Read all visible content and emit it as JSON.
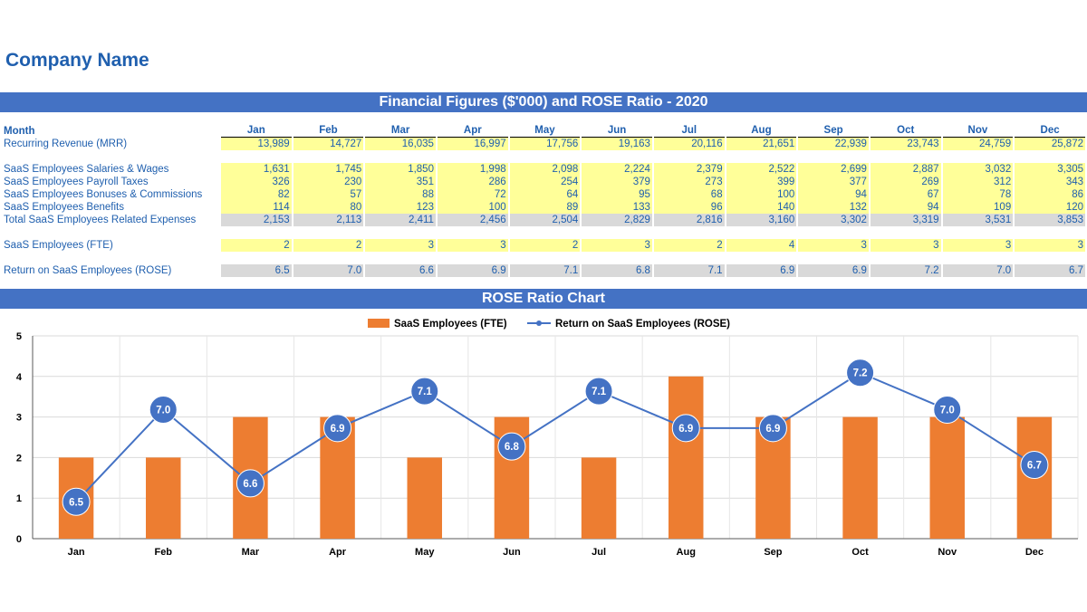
{
  "company_name": "Company Name",
  "financial_title": "Financial Figures ($'000) and ROSE Ratio - 2020",
  "chart_title": "ROSE Ratio Chart",
  "colors": {
    "banner": "#4472c4",
    "text_blue": "#1f5fae",
    "bar": "#ed7d31",
    "line": "#4472c4",
    "yellow_cell": "#ffff99",
    "grey_cell": "#d9d9d9"
  },
  "table": {
    "header_label": "Month",
    "months": [
      "Jan",
      "Feb",
      "Mar",
      "Apr",
      "May",
      "Jun",
      "Jul",
      "Aug",
      "Sep",
      "Oct",
      "Nov",
      "Dec"
    ],
    "rows": [
      {
        "label": "Recurring Revenue (MRR)",
        "style": "yellow",
        "values": [
          "13,989",
          "14,727",
          "16,035",
          "16,997",
          "17,756",
          "19,163",
          "20,116",
          "21,651",
          "22,939",
          "23,743",
          "24,759",
          "25,872"
        ]
      },
      {
        "label": "",
        "style": "spacer",
        "values": []
      },
      {
        "label": "SaaS Employees Salaries & Wages",
        "style": "yellow",
        "values": [
          "1,631",
          "1,745",
          "1,850",
          "1,998",
          "2,098",
          "2,224",
          "2,379",
          "2,522",
          "2,699",
          "2,887",
          "3,032",
          "3,305"
        ]
      },
      {
        "label": "SaaS Employees Payroll Taxes",
        "style": "yellow",
        "values": [
          "326",
          "230",
          "351",
          "286",
          "254",
          "379",
          "273",
          "399",
          "377",
          "269",
          "312",
          "343"
        ]
      },
      {
        "label": "SaaS Employees Bonuses & Commissions",
        "style": "yellow",
        "values": [
          "82",
          "57",
          "88",
          "72",
          "64",
          "95",
          "68",
          "100",
          "94",
          "67",
          "78",
          "86"
        ]
      },
      {
        "label": "SaaS Employees Benefits",
        "style": "yellow",
        "values": [
          "114",
          "80",
          "123",
          "100",
          "89",
          "133",
          "96",
          "140",
          "132",
          "94",
          "109",
          "120"
        ]
      },
      {
        "label": "Total SaaS Employees Related Expenses",
        "style": "grey",
        "values": [
          "2,153",
          "2,113",
          "2,411",
          "2,456",
          "2,504",
          "2,829",
          "2,816",
          "3,160",
          "3,302",
          "3,319",
          "3,531",
          "3,853"
        ]
      },
      {
        "label": "",
        "style": "spacer",
        "values": []
      },
      {
        "label": "SaaS Employees (FTE)",
        "style": "yellow",
        "values": [
          "2",
          "2",
          "3",
          "3",
          "2",
          "3",
          "2",
          "4",
          "3",
          "3",
          "3",
          "3"
        ]
      },
      {
        "label": "",
        "style": "spacer",
        "values": []
      },
      {
        "label": "Return on SaaS Employees (ROSE)",
        "style": "grey",
        "values": [
          "6.5",
          "7.0",
          "6.6",
          "6.9",
          "7.1",
          "6.8",
          "7.1",
          "6.9",
          "6.9",
          "7.2",
          "7.0",
          "6.7"
        ]
      }
    ]
  },
  "chart_data": {
    "type": "bar",
    "title": "ROSE Ratio Chart",
    "categories": [
      "Jan",
      "Feb",
      "Mar",
      "Apr",
      "May",
      "Jun",
      "Jul",
      "Aug",
      "Sep",
      "Oct",
      "Nov",
      "Dec"
    ],
    "series": [
      {
        "name": "SaaS Employees (FTE)",
        "type": "bar",
        "color": "#ed7d31",
        "values": [
          2,
          2,
          3,
          3,
          2,
          3,
          2,
          4,
          3,
          3,
          3,
          3
        ]
      },
      {
        "name": "Return on SaaS Employees (ROSE)",
        "type": "line",
        "color": "#4472c4",
        "values": [
          6.5,
          7.0,
          6.6,
          6.9,
          7.1,
          6.8,
          7.1,
          6.9,
          6.9,
          7.2,
          7.0,
          6.7
        ],
        "labels": [
          "6.5",
          "7.0",
          "6.6",
          "6.9",
          "7.1",
          "6.8",
          "7.1",
          "6.9",
          "6.9",
          "7.2",
          "7.0",
          "6.7"
        ]
      }
    ],
    "ylim": [
      0,
      5
    ],
    "yticks": [
      "0",
      "1",
      "2",
      "3",
      "4",
      "5"
    ],
    "secondary_ylim": [
      6.3,
      7.4
    ],
    "grid": true,
    "legend": "top-center",
    "xlabel": "",
    "ylabel": ""
  }
}
